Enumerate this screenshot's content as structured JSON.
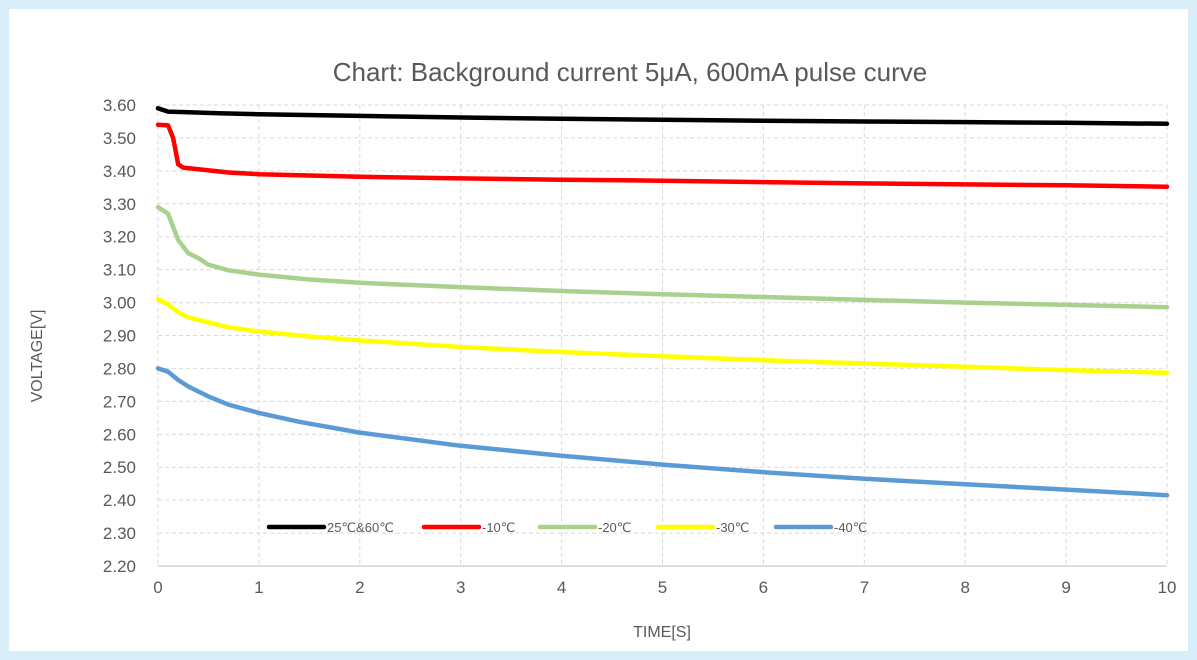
{
  "chart_data": {
    "type": "line",
    "title": "Chart: Background current 5μA, 600mA pulse curve",
    "xlabel": "TIME[S]",
    "ylabel": "VOLTAGE[V]",
    "xlim": [
      0,
      10
    ],
    "ylim": [
      2.2,
      3.6
    ],
    "x_ticks": [
      "0",
      "1",
      "2",
      "3",
      "4",
      "5",
      "6",
      "7",
      "8",
      "9",
      "10"
    ],
    "y_ticks": [
      "2.20",
      "2.30",
      "2.40",
      "2.50",
      "2.60",
      "2.70",
      "2.80",
      "2.90",
      "3.00",
      "3.10",
      "3.20",
      "3.30",
      "3.40",
      "3.50",
      "3.60"
    ],
    "grid": true,
    "legend_position": "bottom-inside",
    "series": [
      {
        "name": "25℃&60℃",
        "color": "#000000",
        "points": [
          [
            0,
            3.59
          ],
          [
            0.1,
            3.58
          ],
          [
            0.3,
            3.578
          ],
          [
            0.6,
            3.575
          ],
          [
            1,
            3.572
          ],
          [
            2,
            3.567
          ],
          [
            3,
            3.562
          ],
          [
            4,
            3.558
          ],
          [
            5,
            3.555
          ],
          [
            6,
            3.552
          ],
          [
            7,
            3.55
          ],
          [
            8,
            3.548
          ],
          [
            9,
            3.546
          ],
          [
            10,
            3.543
          ]
        ]
      },
      {
        "name": "-10℃",
        "color": "#ff0000",
        "points": [
          [
            0,
            3.54
          ],
          [
            0.1,
            3.538
          ],
          [
            0.15,
            3.5
          ],
          [
            0.2,
            3.42
          ],
          [
            0.25,
            3.41
          ],
          [
            0.4,
            3.405
          ],
          [
            0.7,
            3.395
          ],
          [
            1,
            3.39
          ],
          [
            2,
            3.382
          ],
          [
            3,
            3.377
          ],
          [
            4,
            3.373
          ],
          [
            5,
            3.37
          ],
          [
            6,
            3.366
          ],
          [
            7,
            3.362
          ],
          [
            8,
            3.359
          ],
          [
            9,
            3.356
          ],
          [
            10,
            3.352
          ]
        ]
      },
      {
        "name": "-20℃",
        "color": "#a9d18e",
        "points": [
          [
            0,
            3.29
          ],
          [
            0.1,
            3.27
          ],
          [
            0.15,
            3.23
          ],
          [
            0.2,
            3.19
          ],
          [
            0.3,
            3.15
          ],
          [
            0.4,
            3.135
          ],
          [
            0.5,
            3.115
          ],
          [
            0.7,
            3.098
          ],
          [
            1,
            3.085
          ],
          [
            1.5,
            3.07
          ],
          [
            2,
            3.06
          ],
          [
            3,
            3.047
          ],
          [
            4,
            3.035
          ],
          [
            5,
            3.025
          ],
          [
            6,
            3.017
          ],
          [
            7,
            3.008
          ],
          [
            8,
            3.0
          ],
          [
            9,
            2.993
          ],
          [
            10,
            2.986
          ]
        ]
      },
      {
        "name": "-30℃",
        "color": "#ffff00",
        "points": [
          [
            0,
            3.01
          ],
          [
            0.1,
            2.995
          ],
          [
            0.2,
            2.97
          ],
          [
            0.3,
            2.955
          ],
          [
            0.5,
            2.94
          ],
          [
            0.7,
            2.925
          ],
          [
            1,
            2.912
          ],
          [
            1.5,
            2.897
          ],
          [
            2,
            2.885
          ],
          [
            3,
            2.865
          ],
          [
            4,
            2.85
          ],
          [
            5,
            2.837
          ],
          [
            6,
            2.825
          ],
          [
            7,
            2.815
          ],
          [
            8,
            2.805
          ],
          [
            9,
            2.795
          ],
          [
            10,
            2.787
          ]
        ]
      },
      {
        "name": "-40℃",
        "color": "#5b9bd5",
        "points": [
          [
            0,
            2.8
          ],
          [
            0.1,
            2.79
          ],
          [
            0.2,
            2.765
          ],
          [
            0.3,
            2.745
          ],
          [
            0.4,
            2.73
          ],
          [
            0.5,
            2.715
          ],
          [
            0.7,
            2.69
          ],
          [
            1,
            2.665
          ],
          [
            1.4,
            2.638
          ],
          [
            2,
            2.605
          ],
          [
            3,
            2.565
          ],
          [
            4,
            2.535
          ],
          [
            5,
            2.508
          ],
          [
            6,
            2.485
          ],
          [
            7,
            2.465
          ],
          [
            8,
            2.448
          ],
          [
            9,
            2.432
          ],
          [
            10,
            2.415
          ]
        ]
      }
    ]
  }
}
